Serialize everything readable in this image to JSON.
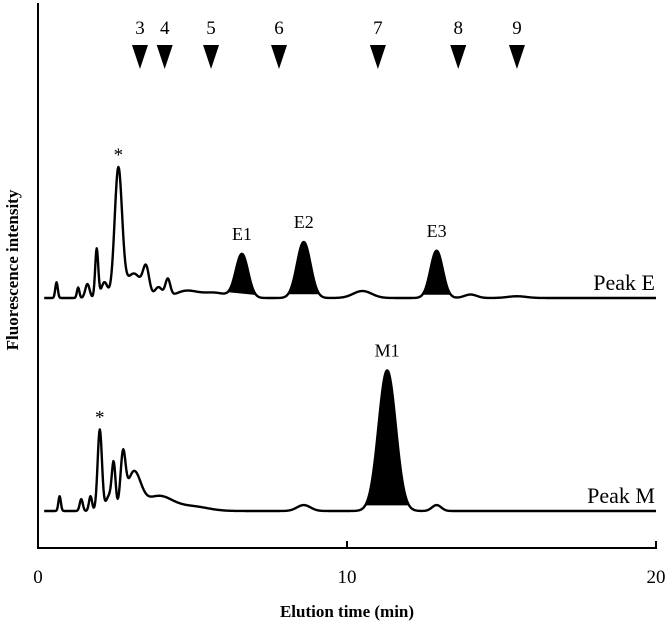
{
  "chart_data": {
    "type": "line",
    "xlabel": "Elution time (min)",
    "ylabel": "Fluorescence intensity",
    "xlim": [
      0,
      20
    ],
    "x_ticks": [
      {
        "value": 0,
        "label": "0"
      },
      {
        "value": 10,
        "label": "10"
      },
      {
        "value": 20,
        "label": "20"
      }
    ],
    "standard_markers": [
      {
        "label": "3",
        "x": 3.3
      },
      {
        "label": "4",
        "x": 4.1
      },
      {
        "label": "5",
        "x": 5.6
      },
      {
        "label": "6",
        "x": 7.8
      },
      {
        "label": "7",
        "x": 11.0
      },
      {
        "label": "8",
        "x": 13.6
      },
      {
        "label": "9",
        "x": 15.5
      }
    ],
    "series": [
      {
        "name": "Peak E",
        "baseline_level": 0.15,
        "components": [
          {
            "x": 0.6,
            "h": 0.09,
            "w": 0.04
          },
          {
            "x": 1.3,
            "h": 0.06,
            "w": 0.04
          },
          {
            "x": 1.6,
            "h": 0.08,
            "w": 0.07
          },
          {
            "x": 1.9,
            "h": 0.28,
            "w": 0.05
          },
          {
            "x": 2.15,
            "h": 0.09,
            "w": 0.1
          },
          {
            "x": 2.6,
            "h": 0.73,
            "w": 0.12
          },
          {
            "x": 3.1,
            "h": 0.14,
            "w": 0.25
          },
          {
            "x": 3.5,
            "h": 0.15,
            "w": 0.1
          },
          {
            "x": 3.9,
            "h": 0.06,
            "w": 0.12
          },
          {
            "x": 4.2,
            "h": 0.1,
            "w": 0.08
          },
          {
            "x": 4.8,
            "h": 0.04,
            "w": 0.35
          },
          {
            "x": 5.7,
            "h": 0.03,
            "w": 0.4
          },
          {
            "x": 6.6,
            "h": 0.25,
            "w": 0.2
          },
          {
            "x": 8.6,
            "h": 0.32,
            "w": 0.22
          },
          {
            "x": 10.5,
            "h": 0.04,
            "w": 0.3
          },
          {
            "x": 12.9,
            "h": 0.27,
            "w": 0.2
          },
          {
            "x": 14.0,
            "h": 0.02,
            "w": 0.2
          },
          {
            "x": 15.5,
            "h": 0.01,
            "w": 0.3
          }
        ],
        "annotations": [
          {
            "text": "*",
            "x": 2.6
          },
          {
            "text": "E1",
            "x": 6.6
          },
          {
            "text": "E2",
            "x": 8.6
          },
          {
            "text": "E3",
            "x": 12.9
          }
        ]
      },
      {
        "name": "Peak M",
        "baseline_level": 0.15,
        "components": [
          {
            "x": 0.7,
            "h": 0.1,
            "w": 0.04
          },
          {
            "x": 1.4,
            "h": 0.08,
            "w": 0.05
          },
          {
            "x": 1.7,
            "h": 0.1,
            "w": 0.05
          },
          {
            "x": 2.0,
            "h": 0.55,
            "w": 0.07
          },
          {
            "x": 2.3,
            "h": 0.1,
            "w": 0.1
          },
          {
            "x": 2.45,
            "h": 0.3,
            "w": 0.06
          },
          {
            "x": 2.75,
            "h": 0.34,
            "w": 0.08
          },
          {
            "x": 3.1,
            "h": 0.25,
            "w": 0.22
          },
          {
            "x": 3.9,
            "h": 0.1,
            "w": 0.45
          },
          {
            "x": 5.0,
            "h": 0.03,
            "w": 0.5
          },
          {
            "x": 8.6,
            "h": 0.04,
            "w": 0.22
          },
          {
            "x": 11.3,
            "h": 0.95,
            "w": 0.28
          },
          {
            "x": 12.9,
            "h": 0.04,
            "w": 0.15
          }
        ],
        "annotations": [
          {
            "text": "*",
            "x": 2.0
          },
          {
            "text": "M1",
            "x": 11.3
          }
        ]
      }
    ],
    "filled_peaks": [
      {
        "series": 0,
        "x_from": 6.15,
        "x_to": 7.05
      },
      {
        "series": 0,
        "x_from": 8.1,
        "x_to": 9.1
      },
      {
        "series": 0,
        "x_from": 12.45,
        "x_to": 13.35
      },
      {
        "series": 1,
        "x_from": 10.6,
        "x_to": 12.0
      }
    ],
    "grid": false,
    "legend": "inline labels at right end of traces"
  }
}
